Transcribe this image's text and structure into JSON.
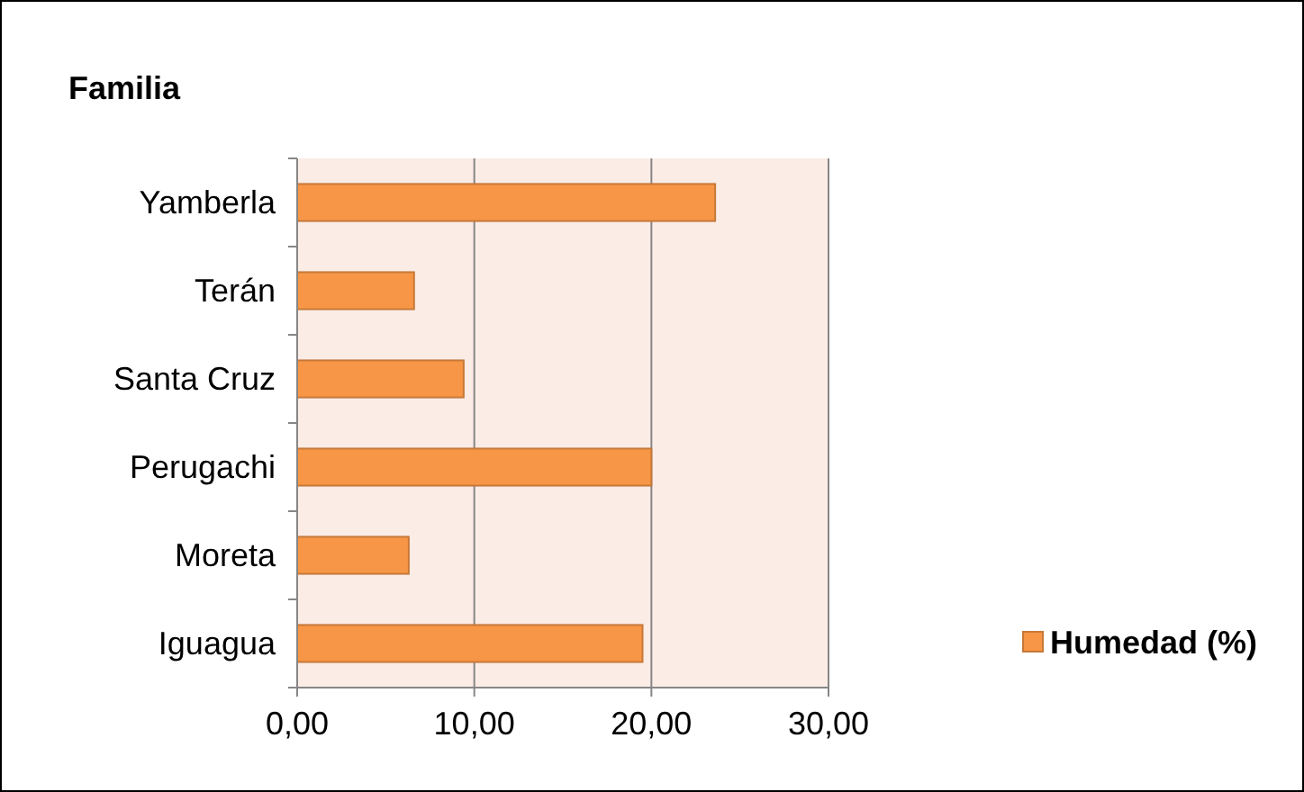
{
  "chart_data": {
    "type": "bar",
    "orientation": "horizontal",
    "ylabel": "Familia",
    "categories": [
      "Yamberla",
      "Terán",
      "Santa Cruz",
      "Perugachi",
      "Moreta",
      "Iguagua"
    ],
    "series": [
      {
        "name": "Humedad (%)",
        "color": "#f79646",
        "values": [
          23.6,
          6.6,
          9.4,
          20.0,
          6.3,
          19.5
        ]
      }
    ],
    "xlim": [
      0,
      30
    ],
    "xticks": [
      {
        "value": 0,
        "label": "0,00"
      },
      {
        "value": 10,
        "label": "10,00"
      },
      {
        "value": 20,
        "label": "20,00"
      },
      {
        "value": 30,
        "label": "30,00"
      }
    ],
    "grid": "x",
    "legend": "right"
  }
}
